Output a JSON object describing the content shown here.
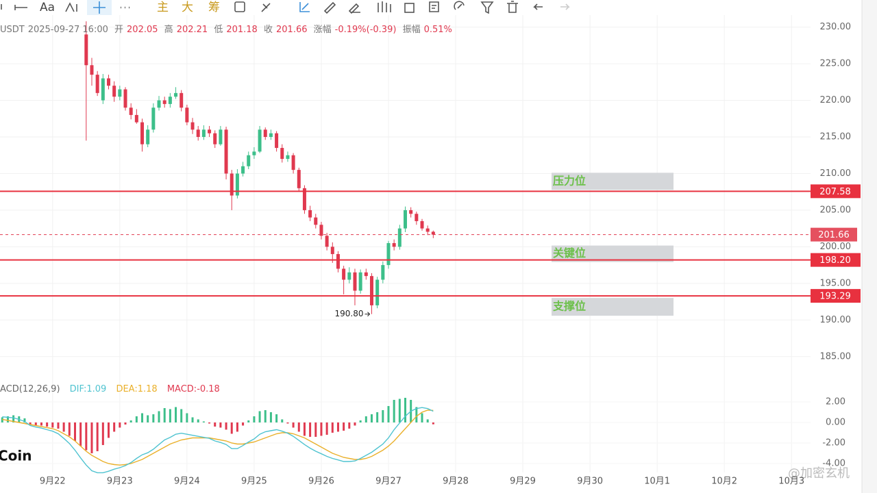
{
  "header": {
    "pair": "USDT",
    "time": "2025-09-27 16:00",
    "open_label": "开",
    "high_label": "高",
    "low_label": "低",
    "close_label": "收",
    "change_label": "涨幅",
    "change": "-0.19%(-0.39)",
    "amp_label": "振幅",
    "amp": "0.51%"
  },
  "toolbar": [
    "Aa",
    "主",
    "大",
    "筹"
  ],
  "watermarks": [
    "Coin",
    "@加密玄机"
  ],
  "chart_data": [
    {
      "type": "candlestick",
      "up_color": "#3dbf8a",
      "down_color": "#e0394f",
      "grid": true,
      "xlim": [
        -15.4,
        129.4
      ],
      "ylim": [
        183.2,
        230.9
      ],
      "xticks": [
        {
          "value": -6,
          "label": "9月22"
        },
        {
          "value": 6,
          "label": "9月23"
        },
        {
          "value": 18,
          "label": "9月24"
        },
        {
          "value": 30,
          "label": "9月25"
        },
        {
          "value": 42,
          "label": "9月26"
        },
        {
          "value": 54,
          "label": "9月27"
        },
        {
          "value": 66,
          "label": "9月28"
        },
        {
          "value": 78,
          "label": "9月29"
        },
        {
          "value": 90,
          "label": "9月30"
        },
        {
          "value": 102,
          "label": "10月1"
        },
        {
          "value": 114,
          "label": "10月2"
        },
        {
          "value": 126,
          "label": "10月3"
        }
      ],
      "yticks": [
        {
          "value": 185,
          "label": "185.00"
        },
        {
          "value": 190,
          "label": "190.00"
        },
        {
          "value": 195,
          "label": "195.00"
        },
        {
          "value": 200,
          "label": "200.00"
        },
        {
          "value": 205,
          "label": "205.00"
        },
        {
          "value": 210,
          "label": "210.00"
        },
        {
          "value": 215,
          "label": "215.00"
        },
        {
          "value": 220,
          "label": "220.00"
        },
        {
          "value": 225,
          "label": "225.00"
        },
        {
          "value": 230,
          "label": "230.00"
        }
      ],
      "x": [
        0,
        1,
        2,
        3,
        4,
        5,
        6,
        7,
        8,
        9,
        10,
        11,
        12,
        13,
        14,
        15,
        16,
        17,
        18,
        19,
        20,
        21,
        22,
        23,
        24,
        25,
        26,
        27,
        28,
        29,
        30,
        31,
        32,
        33,
        34,
        35,
        36,
        37,
        38,
        39,
        40,
        41,
        42,
        43,
        44,
        45,
        46,
        47,
        48,
        49,
        50,
        51,
        52,
        53,
        54,
        55,
        56,
        57,
        58,
        59,
        60,
        61,
        62
      ],
      "open": [
        229,
        224.8,
        223.5,
        220,
        223,
        222,
        220.5,
        221.5,
        219,
        218,
        217,
        214,
        216,
        219,
        220,
        219.5,
        220.5,
        221,
        219,
        217,
        216,
        215,
        216,
        215.5,
        214,
        216,
        210,
        207,
        210,
        211,
        212.5,
        213,
        216,
        215,
        215.5,
        213.5,
        212,
        212.5,
        210.5,
        208,
        205,
        204,
        203,
        201.5,
        200,
        199,
        197,
        195.5,
        196.5,
        194,
        196.5,
        196,
        192,
        195.5,
        197.5,
        200.5,
        200,
        202.5,
        205,
        204.5,
        203.5,
        202.5,
        202.05
      ],
      "high": [
        230.8,
        225.8,
        224,
        223.6,
        223.5,
        222.6,
        222,
        221.8,
        219.6,
        218.8,
        217.5,
        216.6,
        219.6,
        220.6,
        220.5,
        221,
        221.8,
        221.4,
        219.4,
        217.6,
        216.5,
        216.6,
        216.5,
        215.9,
        216.5,
        216.4,
        210.5,
        210.6,
        211.6,
        213,
        213.6,
        216.5,
        216.3,
        216,
        215.8,
        214,
        213,
        212.8,
        210.8,
        208.4,
        205.6,
        204.5,
        203.4,
        201.9,
        200.6,
        199.4,
        197.4,
        197.2,
        197,
        196.9,
        197,
        196.4,
        195.9,
        198,
        200.8,
        201,
        203,
        205.5,
        205.4,
        204.8,
        203.8,
        202.9,
        202.21
      ],
      "low": [
        214.5,
        222,
        220.6,
        219.5,
        221.5,
        219.8,
        220,
        218.6,
        217.4,
        216.8,
        213,
        213.6,
        215.6,
        218.6,
        219,
        219,
        220.2,
        218.5,
        216.6,
        215.4,
        214.5,
        214.6,
        215,
        213.5,
        213.8,
        209.2,
        205,
        206.6,
        209.6,
        210.6,
        212,
        212.8,
        214.6,
        214.6,
        213,
        211.5,
        211.6,
        210,
        207.6,
        204.5,
        203.5,
        202.5,
        201,
        199.5,
        197.8,
        196.5,
        193.5,
        195,
        192,
        193.6,
        195.5,
        190.8,
        191.6,
        195,
        197,
        199.5,
        199.6,
        202,
        204,
        203,
        202.2,
        201.6,
        201.18
      ],
      "close": [
        224.8,
        223.5,
        221,
        223,
        222,
        220.5,
        221.5,
        219,
        218,
        217,
        214,
        216,
        219,
        220,
        219.5,
        220.5,
        221,
        219,
        217,
        216,
        215,
        216,
        215.5,
        214,
        216,
        210,
        207,
        210,
        211,
        212.5,
        213,
        216,
        215,
        215.5,
        213.5,
        212,
        212.5,
        210.5,
        208,
        205,
        204,
        203,
        201.5,
        200,
        199,
        197,
        195.5,
        196.5,
        194,
        196.5,
        196,
        192,
        195.5,
        197.5,
        200.5,
        200,
        202.5,
        205,
        204.5,
        203.5,
        202.5,
        202.05,
        201.66
      ],
      "levels": [
        {
          "name": "压力位",
          "value": 207.58,
          "price_label": "207.58"
        },
        {
          "name": "关键位",
          "value": 198.2,
          "price_label": "198.20"
        },
        {
          "name": "支撑位",
          "value": 193.29,
          "price_label": "193.29"
        }
      ],
      "level_color": "#e8313f",
      "low_annotation": {
        "value": 190.8,
        "label": "190.80"
      }
    },
    {
      "type": "macd",
      "title": "ACD(12,26,9)",
      "dif_label": "DIF:",
      "dea_label": "DEA:",
      "macd_label": "MACD:",
      "dif_color": "#4fc3d0",
      "dea_color": "#eab02a",
      "up_color": "#3dbf8a",
      "down_color": "#e0394f",
      "ylim": [
        -4.87,
        2.8
      ],
      "yticks": [
        {
          "value": -4,
          "label": "-4.00"
        },
        {
          "value": -2,
          "label": "-2.00"
        },
        {
          "value": 0,
          "label": "0.00"
        },
        {
          "value": 2,
          "label": "2.00"
        }
      ],
      "x": [
        -15,
        -14,
        -13,
        -12,
        -11,
        -10,
        -9,
        -8,
        -7,
        -6,
        -5,
        -4,
        -3,
        -2,
        -1,
        0,
        1,
        2,
        3,
        4,
        5,
        6,
        7,
        8,
        9,
        10,
        11,
        12,
        13,
        14,
        15,
        16,
        17,
        18,
        19,
        20,
        21,
        22,
        23,
        24,
        25,
        26,
        27,
        28,
        29,
        30,
        31,
        32,
        33,
        34,
        35,
        36,
        37,
        38,
        39,
        40,
        41,
        42,
        43,
        44,
        45,
        46,
        47,
        48,
        49,
        50,
        51,
        52,
        53,
        54,
        55,
        56,
        57,
        58,
        59,
        60,
        61,
        62
      ],
      "hist": [
        0.5,
        0.6,
        0.7,
        0.6,
        0.4,
        -0.2,
        -0.3,
        -0.3,
        -0.4,
        -0.5,
        -0.6,
        -0.9,
        -1.3,
        -1.8,
        -2.3,
        -2.7,
        -3.0,
        -2.8,
        -2.2,
        -1.5,
        -0.9,
        -0.5,
        -0.2,
        0.2,
        0.6,
        0.9,
        0.7,
        0.8,
        1.1,
        1.4,
        1.3,
        1.5,
        1.3,
        0.9,
        0.5,
        0.3,
        0.1,
        -0.1,
        -0.4,
        -0.5,
        -0.7,
        -1.1,
        -0.9,
        -0.3,
        0.2,
        0.6,
        1.1,
        1.2,
        1.0,
        0.8,
        0.3,
        -0.1,
        -0.5,
        -0.9,
        -1.3,
        -1.4,
        -1.4,
        -1.3,
        -1.2,
        -1.0,
        -0.9,
        -0.8,
        -0.6,
        -0.3,
        0.2,
        0.6,
        0.8,
        1.0,
        1.2,
        1.6,
        2.2,
        2.3,
        2.4,
        2.2,
        1.5,
        0.9,
        0.3,
        -0.18
      ],
      "dif": [
        0.55,
        0.5,
        0.45,
        0.3,
        0.1,
        -0.3,
        -0.45,
        -0.55,
        -0.7,
        -0.85,
        -1.1,
        -1.55,
        -2.05,
        -2.7,
        -3.45,
        -4.15,
        -4.7,
        -4.9,
        -4.9,
        -4.75,
        -4.55,
        -4.4,
        -4.2,
        -3.9,
        -3.5,
        -3.15,
        -2.95,
        -2.6,
        -2.15,
        -1.7,
        -1.45,
        -1.15,
        -1.05,
        -1.15,
        -1.25,
        -1.35,
        -1.45,
        -1.55,
        -1.8,
        -1.95,
        -2.15,
        -2.55,
        -2.55,
        -2.25,
        -1.9,
        -1.6,
        -1.15,
        -0.9,
        -0.8,
        -0.7,
        -0.85,
        -1.05,
        -1.35,
        -1.75,
        -2.15,
        -2.5,
        -2.8,
        -3.05,
        -3.3,
        -3.5,
        -3.65,
        -3.8,
        -3.8,
        -3.75,
        -3.5,
        -3.2,
        -2.9,
        -2.5,
        -2.1,
        -1.5,
        -0.7,
        -0.05,
        0.6,
        1.1,
        1.35,
        1.45,
        1.35,
        1.09
      ],
      "dea": [
        0.3,
        0.2,
        0.1,
        0.0,
        -0.1,
        -0.2,
        -0.3,
        -0.4,
        -0.5,
        -0.6,
        -0.8,
        -1.1,
        -1.4,
        -1.8,
        -2.3,
        -2.8,
        -3.2,
        -3.5,
        -3.8,
        -4.0,
        -4.1,
        -4.15,
        -4.1,
        -4.0,
        -3.8,
        -3.6,
        -3.3,
        -3.0,
        -2.7,
        -2.4,
        -2.1,
        -1.9,
        -1.7,
        -1.6,
        -1.5,
        -1.5,
        -1.5,
        -1.5,
        -1.6,
        -1.7,
        -1.8,
        -2.0,
        -2.1,
        -2.1,
        -2.0,
        -1.9,
        -1.7,
        -1.5,
        -1.3,
        -1.1,
        -1.0,
        -1.0,
        -1.1,
        -1.3,
        -1.5,
        -1.8,
        -2.1,
        -2.4,
        -2.7,
        -3.0,
        -3.2,
        -3.4,
        -3.5,
        -3.6,
        -3.6,
        -3.5,
        -3.3,
        -3.0,
        -2.7,
        -2.3,
        -1.8,
        -1.2,
        -0.6,
        0.0,
        0.6,
        1.0,
        1.2,
        1.18
      ]
    }
  ]
}
